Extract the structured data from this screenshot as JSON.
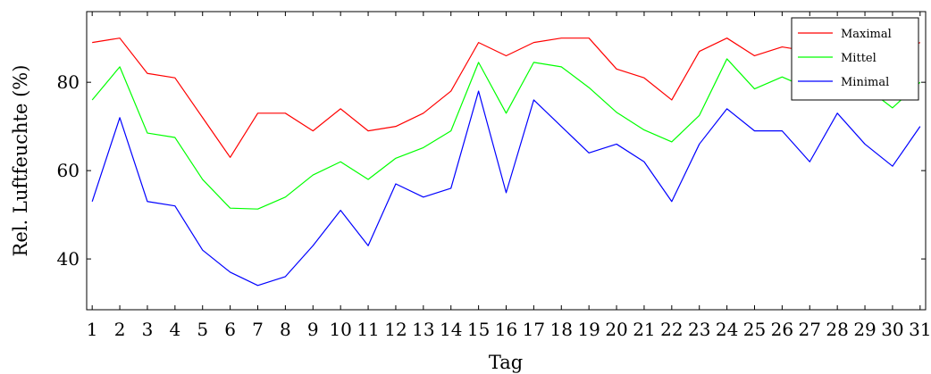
{
  "chart_data": {
    "type": "line",
    "xlabel": "Tag",
    "ylabel": "Rel. Luftfeuchte (%)",
    "x": [
      1,
      2,
      3,
      4,
      5,
      6,
      7,
      8,
      9,
      10,
      11,
      12,
      13,
      14,
      15,
      16,
      17,
      18,
      19,
      20,
      21,
      22,
      23,
      24,
      25,
      26,
      27,
      28,
      29,
      30,
      31
    ],
    "xlim": [
      0.8,
      31.2
    ],
    "ylim": [
      28.5,
      96
    ],
    "yticks": [
      40,
      60,
      80
    ],
    "grid": false,
    "legend_position": "top-right",
    "series": [
      {
        "name": "Maximal",
        "color": "#ff0000",
        "values": [
          89,
          90,
          82,
          81,
          72,
          63,
          73,
          73,
          69,
          74,
          69,
          70,
          73,
          78,
          89,
          86,
          89,
          90,
          90,
          83,
          81,
          76,
          87,
          90,
          86,
          88,
          87,
          88,
          89,
          86,
          89
        ]
      },
      {
        "name": "Mittel",
        "color": "#00ff00",
        "values": [
          76,
          83.5,
          68.5,
          67.5,
          58,
          51.5,
          51.3,
          54,
          59,
          62,
          58,
          62.8,
          65.2,
          69,
          84.5,
          73,
          84.5,
          83.5,
          78.8,
          73.2,
          69.2,
          66.5,
          72.5,
          85.3,
          78.5,
          81.2,
          78.5,
          80,
          79,
          74.2,
          80
        ]
      },
      {
        "name": "Minimal",
        "color": "#0000ff",
        "values": [
          53,
          72,
          53,
          52,
          42,
          37,
          34,
          36,
          43,
          51,
          43,
          57,
          54,
          56,
          78,
          55,
          76,
          70,
          64,
          66,
          62,
          53,
          66,
          74,
          69,
          69,
          62,
          73,
          66,
          61,
          70
        ]
      }
    ]
  }
}
